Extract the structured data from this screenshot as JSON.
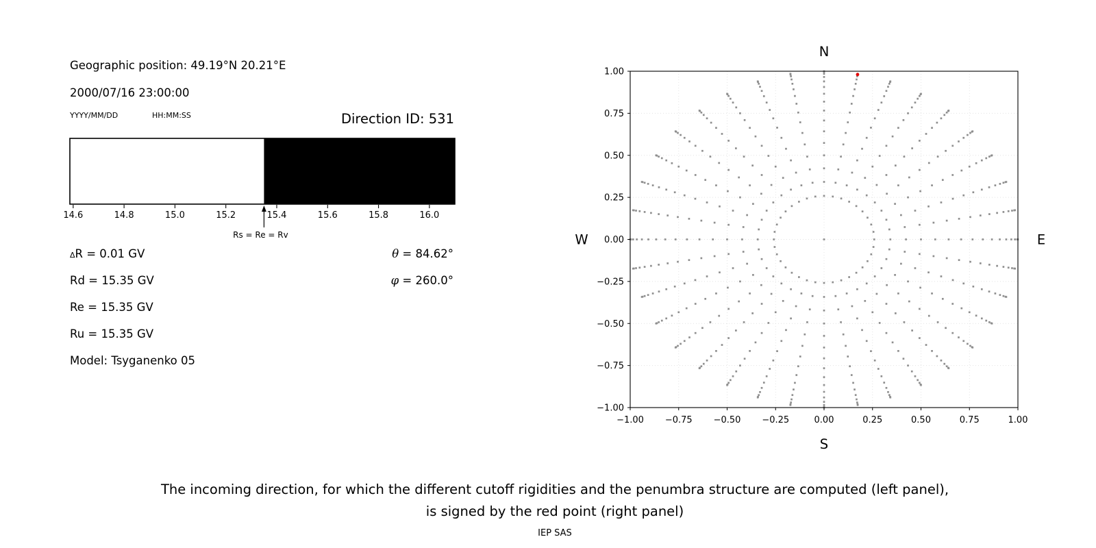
{
  "left_panel": {
    "geo_position": "Geographic position: 49.19°N 20.21°E",
    "datetime": "2000/07/16 23:00:00",
    "date_format_label": "YYYY/MM/DD",
    "time_format_label": "HH:MM:SS",
    "direction_id_label": "Direction ID: 531",
    "delta_symbol": "Δ",
    "delta_r_text": "R = 0.01 GV",
    "rd_text": "Rd = 15.35 GV",
    "re_text": "Re = 15.35 GV",
    "ru_text": "Ru = 15.35 GV",
    "model_text": "Model: Tsyganenko 05",
    "theta_symbol": "θ",
    "theta_value": " = 84.62°",
    "phi_symbol": "φ",
    "phi_value": " = 260.0°"
  },
  "caption": {
    "line1": "The incoming direction, for which the different cutoff rigidities and the penumbra structure are computed (left panel),",
    "line2": "is signed by the red point (right panel)",
    "credit": "IEP SAS"
  },
  "chart_data": [
    {
      "type": "bar",
      "name": "penumbra-structure-band",
      "xlim": [
        14.587,
        16.1
      ],
      "xticks": [
        14.6,
        14.8,
        15.0,
        15.2,
        15.4,
        15.6,
        15.8,
        16.0
      ],
      "xtick_labels": [
        "14.6",
        "14.8",
        "15.0",
        "15.2",
        "15.4",
        "15.6",
        "15.8",
        "16.0"
      ],
      "white_band": [
        14.587,
        15.35
      ],
      "black_band": [
        15.35,
        16.1
      ],
      "band_colors": {
        "allowed": "#ffffff",
        "forbidden": "#000000"
      },
      "arrow_x": 15.35,
      "arrow_label": "Rs = Re = Rv"
    },
    {
      "type": "scatter",
      "name": "incoming-direction-map",
      "compass": {
        "top": "N",
        "bottom": "S",
        "left": "W",
        "right": "E"
      },
      "xlim": [
        -1,
        1
      ],
      "ylim": [
        -1,
        1
      ],
      "xticks": [
        -1.0,
        -0.75,
        -0.5,
        -0.25,
        0.0,
        0.25,
        0.5,
        0.75,
        1.0
      ],
      "yticks": [
        1.0,
        0.75,
        0.5,
        0.25,
        0.0,
        -0.25,
        -0.5,
        -0.75,
        -1.0
      ],
      "xtick_labels": [
        "−1.00",
        "−0.75",
        "−0.50",
        "−0.25",
        "0.00",
        "0.25",
        "0.50",
        "0.75",
        "1.00"
      ],
      "ytick_labels": [
        "1.00",
        "0.75",
        "0.50",
        "0.25",
        "0.00",
        "−0.25",
        "−0.50",
        "−0.75",
        "−1.00"
      ],
      "grid": true,
      "grid_color": "#e2e2e2",
      "dot_color": "#8f8f8f",
      "dots": {
        "azimuth_deg_start": 0,
        "azimuth_deg_step": 10,
        "azimuth_count": 36,
        "zenith_deg_start": 15,
        "zenith_deg_end": 90,
        "zenith_deg_step": 5,
        "radius_rule": "sin(zenith)",
        "center_dot": true
      },
      "red_point": {
        "x": 0.1729,
        "y": 0.9805,
        "theta_deg": 84.62,
        "phi_deg": 260.0,
        "color": "#e30000"
      }
    }
  ]
}
